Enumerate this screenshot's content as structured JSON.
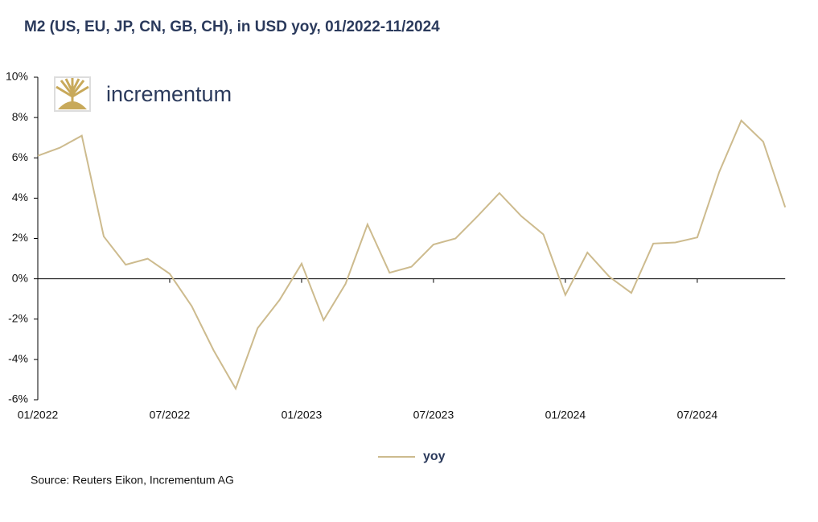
{
  "chart_data": {
    "type": "line",
    "title": "M2 (US, EU, JP, CN, GB, CH), in USD yoy, 01/2022-11/2024",
    "brand": "incrementum",
    "source": "Source: Reuters Eikon, Incrementum AG",
    "categories": [
      "01/2022",
      null,
      null,
      null,
      null,
      null,
      "07/2022",
      null,
      null,
      null,
      null,
      null,
      "01/2023",
      null,
      null,
      null,
      null,
      null,
      "07/2023",
      null,
      null,
      null,
      null,
      null,
      "01/2024",
      null,
      null,
      null,
      null,
      null,
      "07/2024",
      null,
      null,
      null,
      null
    ],
    "series": [
      {
        "name": "yoy",
        "color": "#cdbb8e",
        "values": [
          6.1,
          6.5,
          7.1,
          2.1,
          0.7,
          1.0,
          0.25,
          -1.35,
          -3.55,
          -5.45,
          -2.45,
          -1.05,
          0.75,
          -2.05,
          -0.25,
          2.7,
          0.3,
          0.6,
          1.7,
          2.0,
          3.1,
          4.25,
          3.1,
          2.2,
          -0.8,
          1.3,
          0.1,
          -0.7,
          1.75,
          1.8,
          2.05,
          5.3,
          7.85,
          6.8,
          3.55
        ]
      }
    ],
    "ylim": [
      -6,
      10
    ],
    "yticks": [
      {
        "value": -6,
        "label": "-6%"
      },
      {
        "value": -4,
        "label": "-4%"
      },
      {
        "value": -2,
        "label": "-2%"
      },
      {
        "value": 0,
        "label": "0%"
      },
      {
        "value": 2,
        "label": "2%"
      },
      {
        "value": 4,
        "label": "4%"
      },
      {
        "value": 6,
        "label": "6%"
      },
      {
        "value": 8,
        "label": "8%"
      },
      {
        "value": 10,
        "label": "10%"
      }
    ],
    "grid": false
  }
}
